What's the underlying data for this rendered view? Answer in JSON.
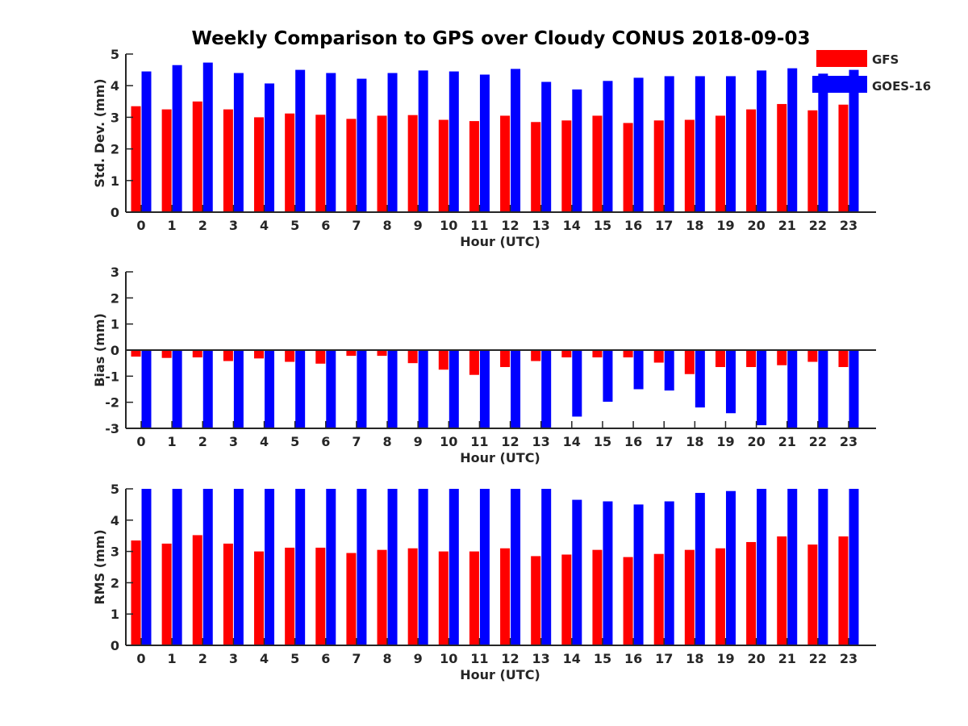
{
  "title": "Weekly Comparison to GPS over Cloudy CONUS 2018-09-03",
  "colors": {
    "GFS": "#ff0000",
    "GOES-16": "#0000ff",
    "axis": "#262626"
  },
  "legend": {
    "position": "top-right",
    "entries": [
      {
        "label": "GFS",
        "color": "#ff0000"
      },
      {
        "label": "GOES-16",
        "color": "#0000ff"
      }
    ]
  },
  "chart_data": [
    {
      "type": "bar",
      "ylabel": "Std. Dev. (mm)",
      "xlabel": "Hour (UTC)",
      "ylim": [
        0,
        5
      ],
      "yticks": [
        "0",
        "1",
        "2",
        "3",
        "4",
        "5"
      ],
      "categories": [
        "0",
        "1",
        "2",
        "3",
        "4",
        "5",
        "6",
        "7",
        "8",
        "9",
        "10",
        "11",
        "12",
        "13",
        "14",
        "15",
        "16",
        "17",
        "18",
        "19",
        "20",
        "21",
        "22",
        "23"
      ],
      "series": [
        {
          "name": "GFS",
          "values": [
            3.35,
            3.25,
            3.5,
            3.25,
            3.0,
            3.12,
            3.08,
            2.95,
            3.05,
            3.07,
            2.92,
            2.88,
            3.05,
            2.85,
            2.9,
            3.05,
            2.82,
            2.9,
            2.92,
            3.05,
            3.25,
            3.42,
            3.22,
            3.4
          ]
        },
        {
          "name": "GOES-16",
          "values": [
            4.45,
            4.65,
            4.73,
            4.4,
            4.07,
            4.5,
            4.4,
            4.22,
            4.4,
            4.48,
            4.45,
            4.35,
            4.53,
            4.12,
            3.88,
            4.15,
            4.25,
            4.3,
            4.3,
            4.3,
            4.48,
            4.55,
            4.38,
            4.5
          ]
        }
      ]
    },
    {
      "type": "bar",
      "ylabel": "Bias (mm)",
      "xlabel": "Hour (UTC)",
      "ylim": [
        -3,
        3
      ],
      "yticks": [
        "-3",
        "-2",
        "-1",
        "0",
        "1",
        "2",
        "3"
      ],
      "categories": [
        "0",
        "1",
        "2",
        "3",
        "4",
        "5",
        "6",
        "7",
        "8",
        "9",
        "10",
        "11",
        "12",
        "13",
        "14",
        "15",
        "16",
        "17",
        "18",
        "19",
        "20",
        "21",
        "22",
        "23"
      ],
      "series": [
        {
          "name": "GFS",
          "values": [
            -0.25,
            -0.3,
            -0.28,
            -0.42,
            -0.32,
            -0.45,
            -0.52,
            -0.22,
            -0.22,
            -0.5,
            -0.75,
            -0.95,
            -0.65,
            -0.42,
            -0.28,
            -0.28,
            -0.28,
            -0.48,
            -0.92,
            -0.65,
            -0.65,
            -0.58,
            -0.45,
            -0.65
          ]
        },
        {
          "name": "GOES-16",
          "values": [
            -3.0,
            -3.0,
            -3.0,
            -3.0,
            -3.0,
            -3.0,
            -3.0,
            -3.0,
            -3.0,
            -3.0,
            -3.0,
            -3.0,
            -3.0,
            -3.0,
            -2.55,
            -1.98,
            -1.5,
            -1.55,
            -2.2,
            -2.42,
            -2.88,
            -3.0,
            -3.0,
            -3.0
          ]
        }
      ]
    },
    {
      "type": "bar",
      "ylabel": "RMS (mm)",
      "xlabel": "Hour (UTC)",
      "ylim": [
        0,
        5
      ],
      "yticks": [
        "0",
        "1",
        "2",
        "3",
        "4",
        "5"
      ],
      "categories": [
        "0",
        "1",
        "2",
        "3",
        "4",
        "5",
        "6",
        "7",
        "8",
        "9",
        "10",
        "11",
        "12",
        "13",
        "14",
        "15",
        "16",
        "17",
        "18",
        "19",
        "20",
        "21",
        "22",
        "23"
      ],
      "series": [
        {
          "name": "GFS",
          "values": [
            3.35,
            3.25,
            3.52,
            3.25,
            3.0,
            3.12,
            3.12,
            2.95,
            3.05,
            3.1,
            3.0,
            3.0,
            3.1,
            2.85,
            2.9,
            3.05,
            2.82,
            2.92,
            3.05,
            3.1,
            3.3,
            3.48,
            3.22,
            3.48
          ]
        },
        {
          "name": "GOES-16",
          "values": [
            5.0,
            5.0,
            5.0,
            5.0,
            5.0,
            5.0,
            5.0,
            5.0,
            5.0,
            5.0,
            5.0,
            5.0,
            5.0,
            5.0,
            4.65,
            4.6,
            4.5,
            4.6,
            4.87,
            4.93,
            5.0,
            5.0,
            5.0,
            5.0
          ]
        }
      ]
    }
  ]
}
